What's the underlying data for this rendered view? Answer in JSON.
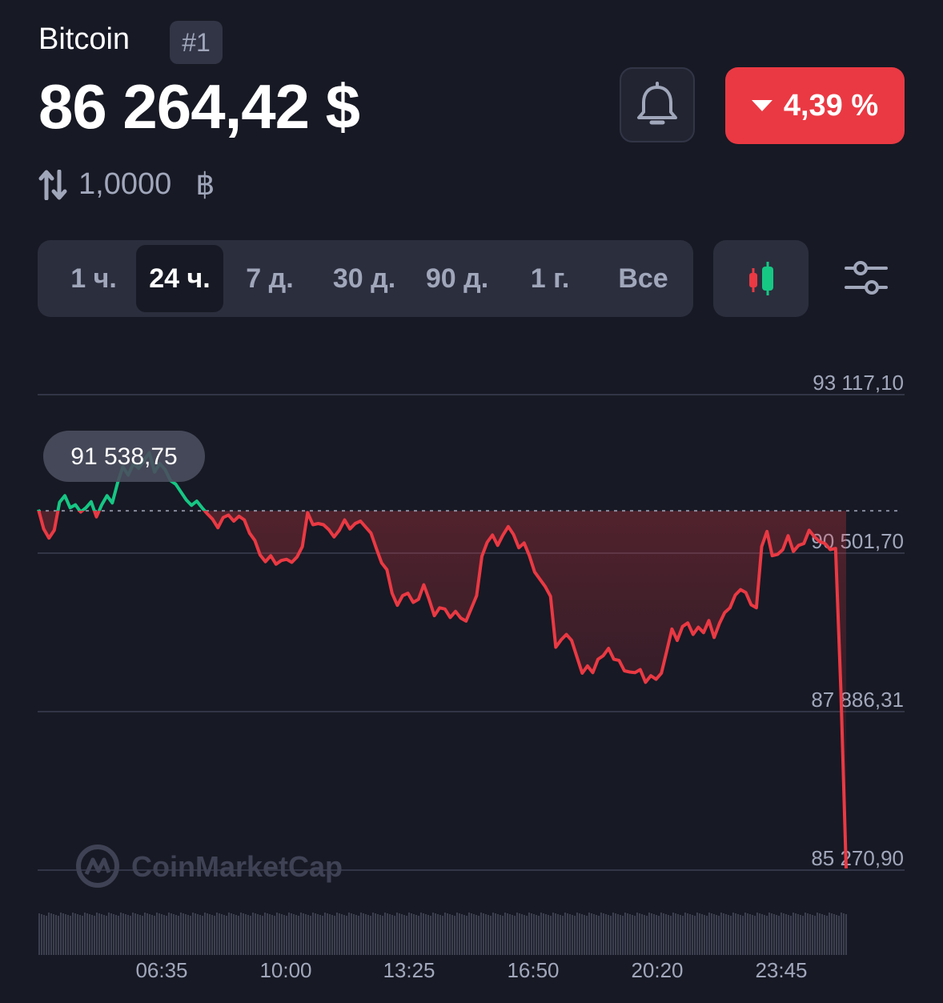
{
  "coin": {
    "name": "Bitcoin",
    "rank": "#1"
  },
  "price": "86 264,42 $",
  "change": {
    "text": "4,39 %",
    "direction": "down",
    "color": "#ea3943"
  },
  "conversion": {
    "amount": "1,0000",
    "symbol": "฿"
  },
  "tabs": [
    {
      "label": "1 ч.",
      "active": false
    },
    {
      "label": "24 ч.",
      "active": true
    },
    {
      "label": "7 д.",
      "active": false
    },
    {
      "label": "30 д.",
      "active": false
    },
    {
      "label": "90 д.",
      "active": false
    },
    {
      "label": "1 г.",
      "active": false
    },
    {
      "label": "Все",
      "active": false
    }
  ],
  "icons": {
    "alert": "bell-icon",
    "conversion": "swap-arrows-icon",
    "chart_type": "candlestick-icon",
    "settings": "sliders-icon",
    "watermark": "coinmarketcap-logo"
  },
  "colors": {
    "up": "#16c784",
    "down": "#ea3943",
    "background": "#171924",
    "muted": "#a1a7bb"
  },
  "watermark": "CoinMarketCap",
  "chart_data": {
    "type": "line",
    "title": "",
    "xlabel": "",
    "ylabel": "",
    "x_ticks": [
      "06:35",
      "10:00",
      "13:25",
      "16:50",
      "20:20",
      "23:45"
    ],
    "y_ticks": [
      "93 117,10",
      "90 501,70",
      "87 886,31",
      "85 270,90"
    ],
    "y_tick_values": [
      93117.1,
      90501.7,
      87886.31,
      85270.9
    ],
    "ylim": [
      85270.9,
      93117.1
    ],
    "reference_line": 91200,
    "hover_label": "91 538,75",
    "up_color": "#16c784",
    "down_color": "#ea3943",
    "grid": true,
    "series": [
      {
        "values": [
          91220,
          90900,
          90750,
          90880,
          91340,
          91450,
          91250,
          91300,
          91180,
          91250,
          91350,
          91100,
          91300,
          91450,
          91330,
          91660,
          91930,
          91790,
          91980,
          91900,
          92030,
          92160,
          91840,
          91980,
          91880,
          91700,
          91640,
          91510,
          91380,
          91290,
          91360,
          91250,
          91150,
          91060,
          90920,
          91090,
          91130,
          91030,
          91110,
          91050,
          90830,
          90710,
          90470,
          90360,
          90460,
          90320,
          90380,
          90400,
          90350,
          90440,
          90610,
          91170,
          90970,
          90990,
          90970,
          90890,
          90770,
          90880,
          91050,
          90900,
          90990,
          91030,
          90930,
          90830,
          90580,
          90340,
          90230,
          89840,
          89640,
          89800,
          89840,
          89690,
          89740,
          89980,
          89740,
          89470,
          89600,
          89580,
          89440,
          89540,
          89430,
          89380,
          89590,
          89800,
          90450,
          90680,
          90800,
          90630,
          90800,
          90940,
          90810,
          90590,
          90670,
          90460,
          90190,
          90070,
          89950,
          89790,
          88950,
          89070,
          89160,
          89060,
          88790,
          88520,
          88640,
          88530,
          88750,
          88810,
          88930,
          88750,
          88730,
          88560,
          88540,
          88530,
          88580,
          88370,
          88480,
          88420,
          88520,
          88880,
          89250,
          89060,
          89290,
          89350,
          89160,
          89280,
          89190,
          89390,
          89110,
          89340,
          89520,
          89600,
          89810,
          89900,
          89850,
          89650,
          89600,
          90610,
          90860,
          90460,
          90480,
          90560,
          90790,
          90530,
          90630,
          90660,
          90880,
          90770,
          90690,
          90660,
          90560,
          90580,
          88250,
          85300
        ]
      }
    ]
  }
}
